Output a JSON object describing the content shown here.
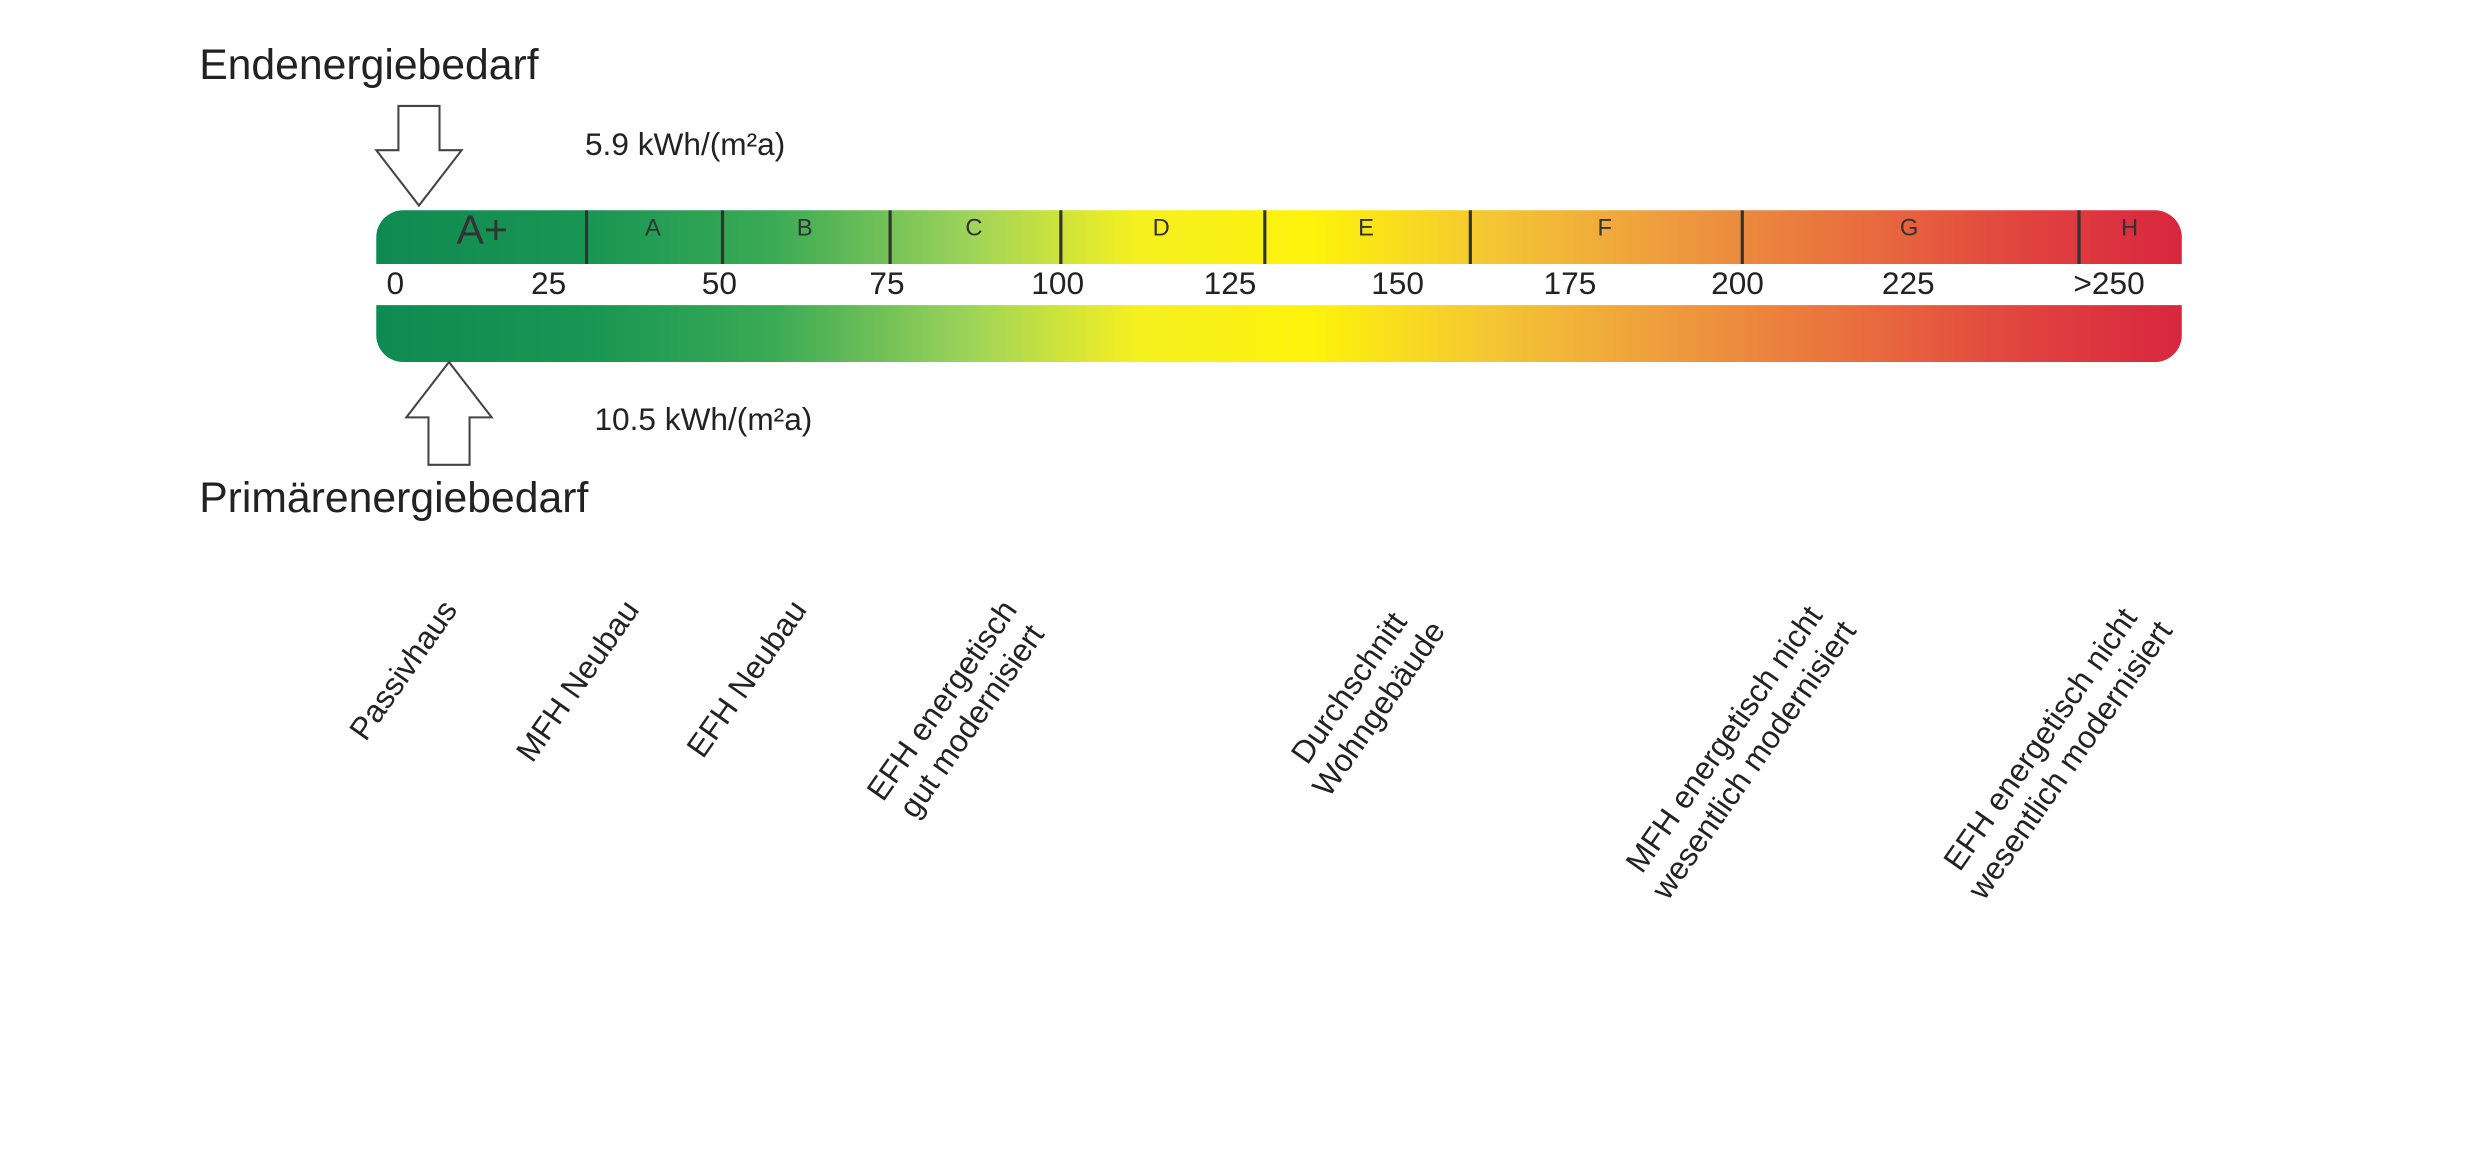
{
  "chart_data": {
    "type": "energy-scale",
    "title_top": "Endenergiebedarf",
    "title_bottom": "Primärenergiebedarf",
    "endenergie": {
      "value": 5.9,
      "label": "5.9  kWh/(m²a)"
    },
    "primaerenergie": {
      "value": 10.5,
      "label": "10.5  kWh/(m²a)"
    },
    "ticks": [
      "0",
      "25",
      "50",
      "75",
      "100",
      "125",
      "150",
      "175",
      "200",
      "225",
      ">250"
    ],
    "classes": [
      {
        "label": "A+",
        "from": 0,
        "to": 30
      },
      {
        "label": "A",
        "from": 30,
        "to": 50
      },
      {
        "label": "B",
        "from": 50,
        "to": 75
      },
      {
        "label": "C",
        "from": 75,
        "to": 100
      },
      {
        "label": "D",
        "from": 100,
        "to": 130
      },
      {
        "label": "E",
        "from": 130,
        "to": 160
      },
      {
        "label": "F",
        "from": 160,
        "to": 200
      },
      {
        "label": "G",
        "from": 200,
        "to": 250
      },
      {
        "label": "H",
        "from": 250,
        "to": 265
      }
    ],
    "references": [
      {
        "lines": [
          "Passivhaus"
        ],
        "value": 12
      },
      {
        "lines": [
          "MFH Neubau"
        ],
        "value": 38
      },
      {
        "lines": [
          "EFH Neubau"
        ],
        "value": 62
      },
      {
        "lines": [
          "EFH energetisch",
          "gut modernisiert"
        ],
        "value": 95
      },
      {
        "lines": [
          "Durchschnitt",
          "Wohngebäude"
        ],
        "value": 155
      },
      {
        "lines": [
          "MFH energetisch nicht",
          "wesentlich modernisiert"
        ],
        "value": 215
      },
      {
        "lines": [
          "EFH energetisch nicht",
          "wesentlich modernisiert"
        ],
        "value": 260
      }
    ],
    "colors": {
      "low": "#0f8a52",
      "mid": "#fdf20a",
      "high": "#d8263f"
    }
  }
}
